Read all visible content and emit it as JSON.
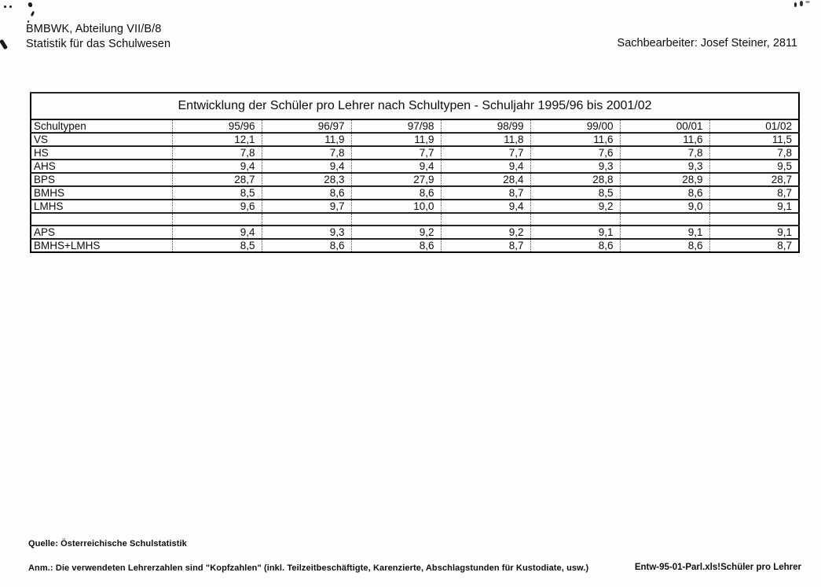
{
  "header": {
    "org_line1": "BMBWK, Abteilung VII/B/8",
    "org_line2": "Statistik für das Schulwesen",
    "clerk": "Sachbearbeiter: Josef Steiner, 2811"
  },
  "table": {
    "title": "Entwicklung der Schüler pro Lehrer nach Schultypen - Schuljahr 1995/96 bis 2001/02",
    "columns": [
      "Schultypen",
      "95/96",
      "96/97",
      "97/98",
      "98/99",
      "99/00",
      "00/01",
      "01/02"
    ],
    "rows": [
      {
        "label": "VS",
        "values": [
          "12,1",
          "11,9",
          "11,9",
          "11,8",
          "11,6",
          "11,6",
          "11,5"
        ]
      },
      {
        "label": "HS",
        "values": [
          "7,8",
          "7,8",
          "7,7",
          "7,7",
          "7,6",
          "7,8",
          "7,8"
        ]
      },
      {
        "label": "AHS",
        "values": [
          "9,4",
          "9,4",
          "9,4",
          "9,4",
          "9,3",
          "9,3",
          "9,5"
        ]
      },
      {
        "label": "BPS",
        "values": [
          "28,7",
          "28,3",
          "27,9",
          "28,4",
          "28,8",
          "28,9",
          "28,7"
        ]
      },
      {
        "label": "BMHS",
        "values": [
          "8,5",
          "8,6",
          "8,6",
          "8,7",
          "8,5",
          "8,6",
          "8,7"
        ]
      },
      {
        "label": "LMHS",
        "values": [
          "9,6",
          "9,7",
          "10,0",
          "9,4",
          "9,2",
          "9,0",
          "9,1"
        ]
      },
      {
        "label": "",
        "values": [
          "",
          "",
          "",
          "",
          "",
          "",
          ""
        ]
      },
      {
        "label": "APS",
        "values": [
          "9,4",
          "9,3",
          "9,2",
          "9,2",
          "9,1",
          "9,1",
          "9,1"
        ]
      },
      {
        "label": "BMHS+LMHS",
        "values": [
          "8,5",
          "8,6",
          "8,6",
          "8,7",
          "8,6",
          "8,6",
          "8,7"
        ]
      }
    ]
  },
  "footer": {
    "source": "Quelle: Österreichische Schulstatistik",
    "note": "Anm.: Die verwendeten Lehrerzahlen sind \"Kopfzahlen\" (inkl. Teilzeitbeschäftigte, Karenzierte, Abschlagstunden für Kustodiate, usw.)",
    "file_ref": "Entw-95-01-Parl.xls!Schüler pro Lehrer"
  }
}
